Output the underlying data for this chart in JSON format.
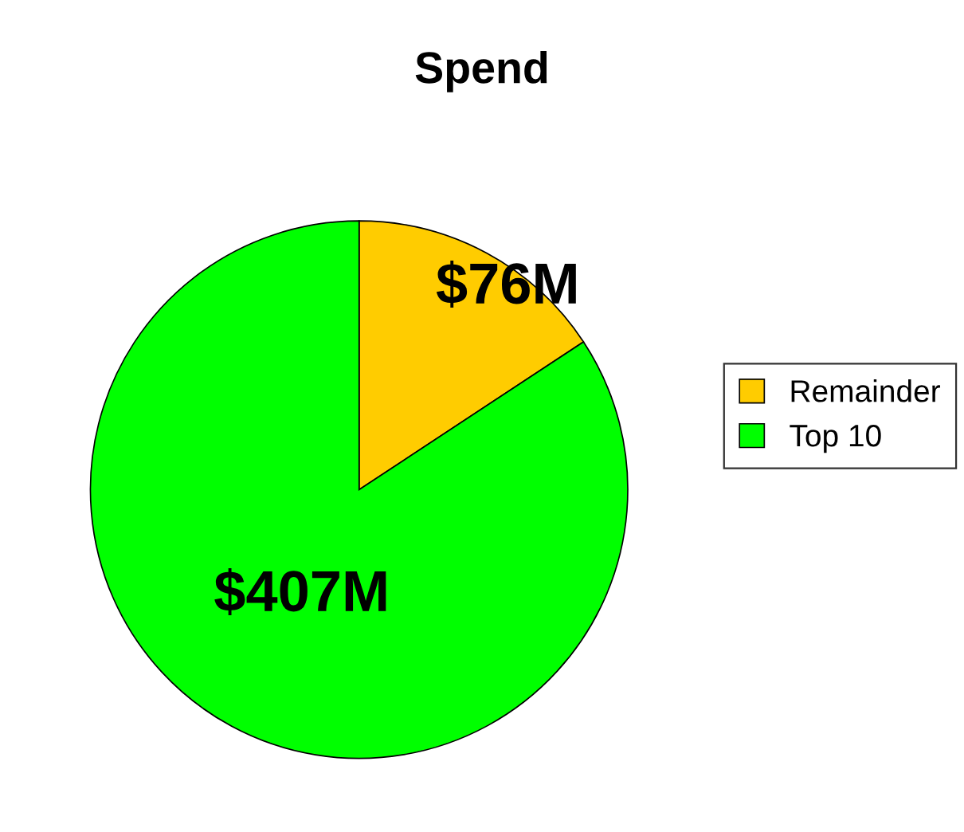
{
  "chart_data": {
    "type": "pie",
    "title": "Spend",
    "categories": [
      "Remainder",
      "Top 10"
    ],
    "values": [
      76,
      407
    ],
    "colors": [
      "#ffcc00",
      "#00ff00"
    ],
    "value_labels": [
      "$76M",
      "$407M"
    ],
    "legend": "right"
  }
}
